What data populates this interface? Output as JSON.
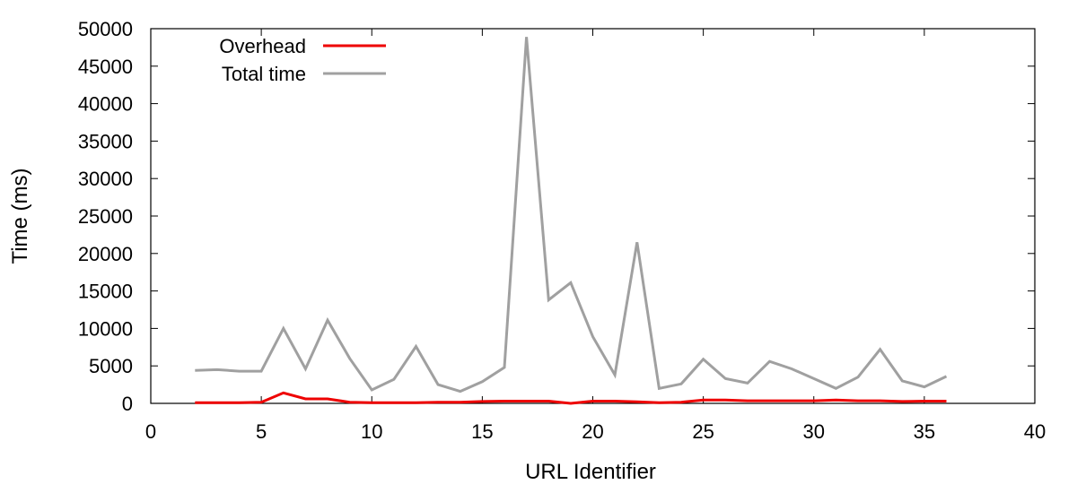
{
  "chart_data": {
    "type": "line",
    "title": "",
    "xlabel": "URL Identifier",
    "ylabel": "Time (ms)",
    "xlim": [
      0,
      40
    ],
    "ylim": [
      0,
      50000
    ],
    "xticks": [
      0,
      5,
      10,
      15,
      20,
      25,
      30,
      35,
      40
    ],
    "yticks": [
      0,
      5000,
      10000,
      15000,
      20000,
      25000,
      30000,
      35000,
      40000,
      45000,
      50000
    ],
    "grid": false,
    "legend_position": "top-left",
    "x": [
      2,
      3,
      4,
      5,
      6,
      7,
      8,
      9,
      10,
      11,
      12,
      13,
      14,
      15,
      16,
      17,
      18,
      19,
      20,
      21,
      22,
      23,
      24,
      25,
      26,
      27,
      28,
      29,
      30,
      31,
      32,
      33,
      34,
      35,
      36
    ],
    "series": [
      {
        "name": "Overhead",
        "color": "#ee0000",
        "values": [
          100,
          100,
          100,
          150,
          1400,
          600,
          600,
          150,
          100,
          100,
          100,
          150,
          150,
          250,
          300,
          300,
          300,
          0,
          300,
          300,
          200,
          100,
          150,
          450,
          450,
          350,
          350,
          350,
          350,
          450,
          350,
          350,
          250,
          300,
          300
        ]
      },
      {
        "name": "Total time",
        "color": "#a0a0a0",
        "values": [
          4400,
          4500,
          4300,
          4300,
          10000,
          4600,
          11100,
          6000,
          1800,
          3200,
          7600,
          2500,
          1600,
          2900,
          4800,
          48900,
          13800,
          16100,
          8900,
          3800,
          21500,
          2000,
          2600,
          5900,
          3300,
          2700,
          5600,
          4600,
          3300,
          2000,
          3500,
          7200,
          3000,
          2200,
          3600
        ]
      }
    ]
  }
}
